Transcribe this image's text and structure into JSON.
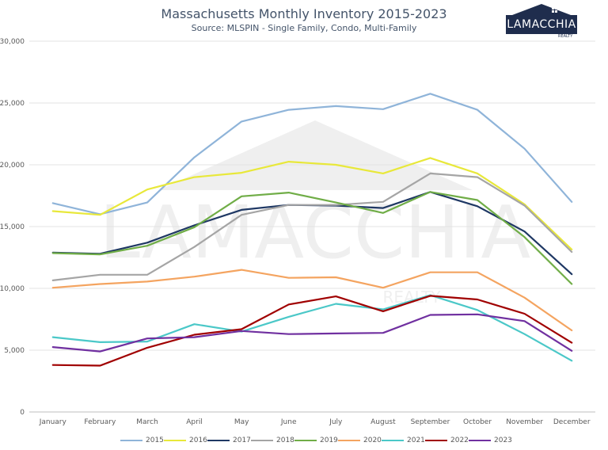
{
  "header": {
    "title": "Massachusetts Monthly Inventory 2015-2023",
    "subtitle": "Source: MLSPIN - Single Family, Condo, Multi-Family"
  },
  "logo": {
    "name": "LAMACCHIA",
    "tagline": "REALTY"
  },
  "watermark": {
    "name": "LAMACCHIA",
    "tagline": "REALTY"
  },
  "chart_data": {
    "type": "line",
    "title": "Massachusetts Monthly Inventory 2015-2023",
    "subtitle": "Source: MLSPIN - Single Family, Condo, Multi-Family",
    "xlabel": "",
    "ylabel": "",
    "ylim": [
      0,
      30000
    ],
    "yticks": [
      0,
      5000,
      10000,
      15000,
      20000,
      25000,
      30000
    ],
    "ytick_labels": [
      "0",
      "5,000",
      "10,000",
      "15,000",
      "20,000",
      "25,000",
      "30,000"
    ],
    "grid": true,
    "legend_position": "bottom",
    "categories": [
      "January",
      "February",
      "March",
      "April",
      "May",
      "June",
      "July",
      "August",
      "September",
      "October",
      "November",
      "December"
    ],
    "series": [
      {
        "name": "2015",
        "color": "#8fb4d9",
        "values": [
          16900,
          16000,
          16950,
          20600,
          23500,
          24450,
          24750,
          24500,
          25750,
          24450,
          21300,
          17000
        ]
      },
      {
        "name": "2016",
        "color": "#e8e83a",
        "values": [
          16250,
          15950,
          18000,
          19000,
          19350,
          20250,
          20000,
          19300,
          20550,
          19300,
          16800,
          13150
        ]
      },
      {
        "name": "2017",
        "color": "#1f3864",
        "values": [
          12900,
          12800,
          13700,
          15100,
          16350,
          16750,
          16700,
          16500,
          17800,
          16650,
          14600,
          11150
        ]
      },
      {
        "name": "2018",
        "color": "#a5a5a5",
        "values": [
          10650,
          11100,
          11100,
          13350,
          15950,
          16750,
          16750,
          17000,
          19300,
          19000,
          16700,
          12950
        ]
      },
      {
        "name": "2019",
        "color": "#70ad47",
        "values": [
          12850,
          12750,
          13450,
          14950,
          17450,
          17750,
          16950,
          16100,
          17800,
          17150,
          14150,
          10350
        ]
      },
      {
        "name": "2020",
        "color": "#f4a460",
        "values": [
          10050,
          10350,
          10550,
          10950,
          11500,
          10850,
          10900,
          10050,
          11300,
          11300,
          9250,
          6600
        ]
      },
      {
        "name": "2021",
        "color": "#4bc8c8",
        "values": [
          6050,
          5650,
          5700,
          7100,
          6500,
          7700,
          8750,
          8300,
          9450,
          8250,
          6300,
          4150
        ]
      },
      {
        "name": "2022",
        "color": "#a00000",
        "values": [
          3800,
          3750,
          5200,
          6250,
          6700,
          8700,
          9350,
          8150,
          9400,
          9100,
          7950,
          5600
        ]
      },
      {
        "name": "2023",
        "color": "#7030a0",
        "values": [
          5250,
          4900,
          5950,
          6050,
          6550,
          6300,
          6350,
          6400,
          7850,
          7900,
          7350,
          4950
        ]
      }
    ]
  }
}
